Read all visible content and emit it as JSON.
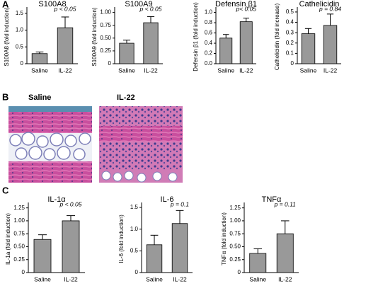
{
  "panel_labels": [
    "A",
    "B",
    "C"
  ],
  "histology": {
    "labels": [
      "Saline",
      "IL-22"
    ]
  },
  "chart_data": [
    {
      "type": "bar",
      "title": "S100A8",
      "y_label": "S100A8 (fold induction)",
      "annotation": "p < 0.05",
      "categories": [
        "Saline",
        "IL-22"
      ],
      "values": [
        0.3,
        1.07
      ],
      "errors": [
        0.05,
        0.32
      ],
      "color": "#999999",
      "ylim": [
        0,
        1.6
      ],
      "yticks": [
        0,
        0.5,
        {
          "value": 1,
          "label": "1.0"
        },
        1.5
      ]
    },
    {
      "type": "bar",
      "title": "S100A9",
      "y_label": "S100A9 (fold induction)",
      "annotation": "p < 0.05",
      "categories": [
        "Saline",
        "IL-22"
      ],
      "values": [
        0.4,
        0.8
      ],
      "errors": [
        0.06,
        0.12
      ],
      "color": "#999999",
      "ylim": [
        0,
        1.05
      ],
      "yticks": [
        0,
        0.25,
        {
          "value": 0.5,
          "label": "0.50"
        },
        0.75,
        {
          "value": 1,
          "label": "1.00"
        }
      ]
    },
    {
      "type": "bar",
      "title": "Defensin β1",
      "y_label": "Defensin β1 (fold induction)",
      "annotation": "p< 0.05",
      "categories": [
        "Saline",
        "IL-22"
      ],
      "values": [
        0.5,
        0.82
      ],
      "errors": [
        0.07,
        0.07
      ],
      "color": "#999999",
      "ylim": [
        0,
        1.05
      ],
      "yticks": [
        {
          "value": 0,
          "label": "0.0"
        },
        0.2,
        0.4,
        0.6,
        0.8,
        {
          "value": 1,
          "label": "1.0"
        }
      ]
    },
    {
      "type": "bar",
      "title": "Cathelicidin",
      "y_label": "Cathelicidin (fold increase)",
      "annotation": "p = 0.84",
      "categories": [
        "Saline",
        "IL-22"
      ],
      "values": [
        0.29,
        0.37
      ],
      "errors": [
        0.05,
        0.11
      ],
      "color": "#999999",
      "ylim": [
        0,
        0.52
      ],
      "yticks": [
        0,
        0.1,
        0.2,
        0.3,
        0.4,
        0.5
      ]
    },
    {
      "type": "bar",
      "title": "IL-1α",
      "y_label": "IL-1a (fold induction)",
      "annotation": "p < 0.05",
      "categories": [
        "Saline",
        "IL-22"
      ],
      "values": [
        0.64,
        1.0
      ],
      "errors": [
        0.09,
        0.1
      ],
      "color": "#999999",
      "ylim": [
        0,
        1.3
      ],
      "yticks": [
        0,
        0.25,
        {
          "value": 0.5,
          "label": "0.50"
        },
        0.75,
        {
          "value": 1,
          "label": "1.00"
        },
        1.25
      ]
    },
    {
      "type": "bar",
      "title": "IL-6",
      "y_label": "IL-6 (fold induction)",
      "annotation": "p = 0.1",
      "categories": [
        "Saline",
        "IL-22"
      ],
      "values": [
        0.64,
        1.13
      ],
      "errors": [
        0.22,
        0.3
      ],
      "color": "#999999",
      "ylim": [
        0,
        1.55
      ],
      "yticks": [
        0,
        0.5,
        {
          "value": 1,
          "label": "1.0"
        },
        1.5
      ]
    },
    {
      "type": "bar",
      "title": "TNFα",
      "y_label": "TNFα (fold induction)",
      "annotation": "p = 0.11",
      "categories": [
        "Saline",
        "IL-22"
      ],
      "values": [
        0.37,
        0.75
      ],
      "errors": [
        0.09,
        0.25
      ],
      "color": "#999999",
      "ylim": [
        0,
        1.3
      ],
      "yticks": [
        0,
        0.25,
        {
          "value": 0.5,
          "label": "0.50"
        },
        0.75,
        {
          "value": 1,
          "label": "1.00"
        },
        1.25
      ]
    }
  ]
}
